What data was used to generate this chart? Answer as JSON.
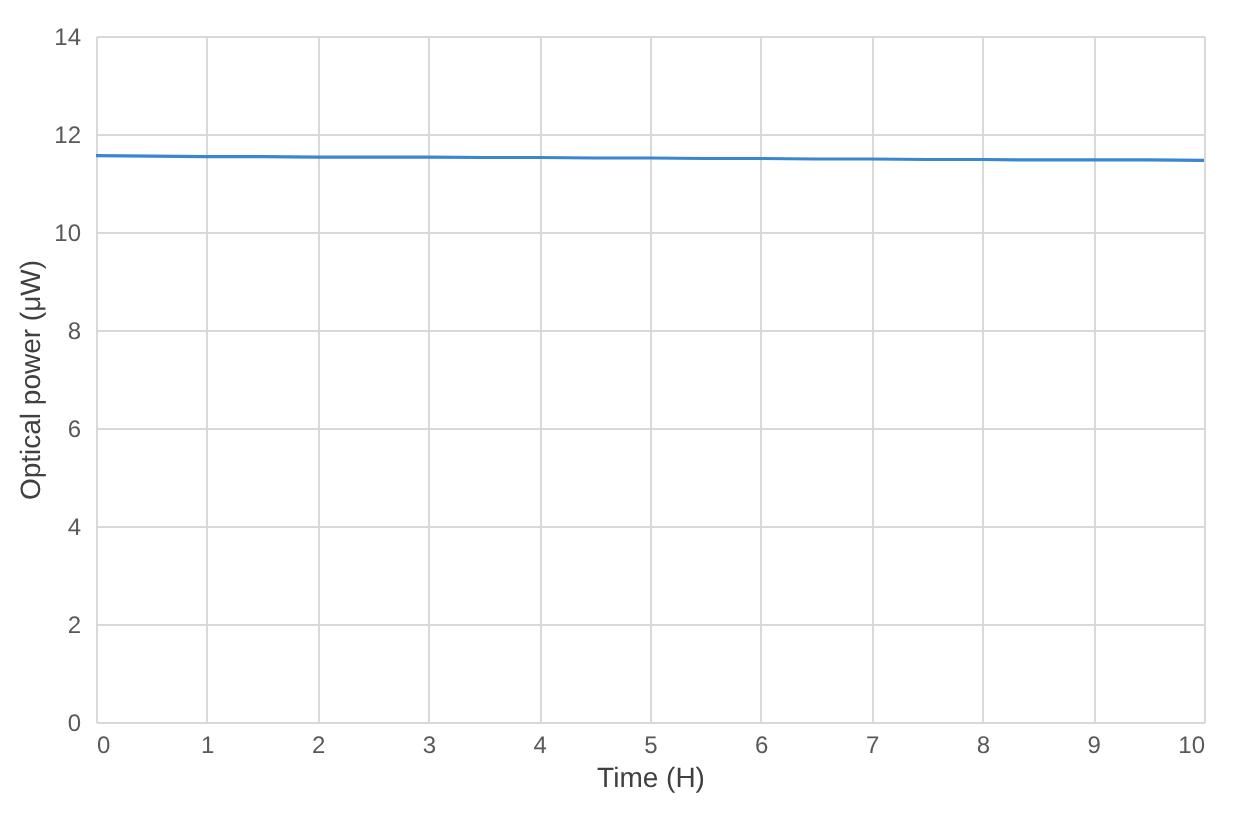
{
  "chart_data": {
    "type": "line",
    "xlabel": "Time (H)",
    "ylabel": "Optical power (μW)",
    "x": [
      0,
      0.5,
      1,
      1.5,
      2,
      2.5,
      3,
      3.5,
      4,
      4.5,
      5,
      5.5,
      6,
      6.5,
      7,
      7.5,
      8,
      8.5,
      9,
      9.5,
      10
    ],
    "series": [
      {
        "color": "#3a87d0",
        "values": [
          11.56,
          11.55,
          11.54,
          11.54,
          11.53,
          11.53,
          11.53,
          11.52,
          11.52,
          11.51,
          11.51,
          11.5,
          11.5,
          11.49,
          11.49,
          11.48,
          11.48,
          11.47,
          11.47,
          11.47,
          11.46
        ]
      }
    ],
    "xlim": [
      0,
      10
    ],
    "xticks": [
      0,
      1,
      2,
      3,
      4,
      5,
      6,
      7,
      8,
      9,
      10
    ],
    "ylim": [
      0,
      14
    ],
    "yticks": [
      0,
      2,
      4,
      6,
      8,
      10,
      12,
      14
    ],
    "grid": true,
    "marker": "none",
    "line_style": "solid",
    "legend": false
  }
}
